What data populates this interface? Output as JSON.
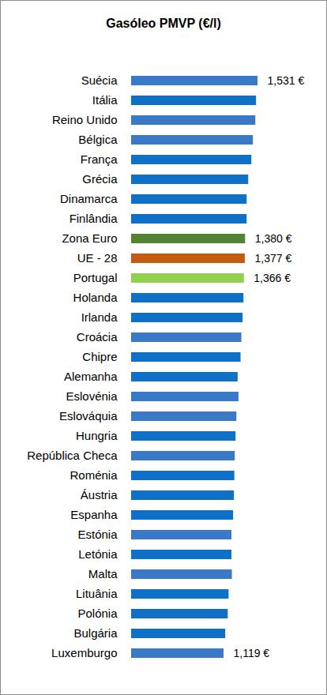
{
  "chart_data": {
    "type": "bar",
    "title": "Gasóleo PMVP (€/l)",
    "orientation": "horizontal",
    "categories": [
      "Suécia",
      "Itália",
      "Reino Unido",
      "Bélgica",
      "França",
      "Grécia",
      "Dinamarca",
      "Finlândia",
      "Zona Euro",
      "UE - 28",
      "Portugal",
      "Holanda",
      "Irlanda",
      "Croácia",
      "Chipre",
      "Alemanha",
      "Eslovénia",
      "Eslováquia",
      "Hungria",
      "República Checa",
      "Roménia",
      "Áustria",
      "Espanha",
      "Estónia",
      "Letónia",
      "Malta",
      "Lituânia",
      "Polónia",
      "Bulgária",
      "Luxemburgo"
    ],
    "values": [
      1.531,
      1.513,
      1.504,
      1.475,
      1.456,
      1.418,
      1.399,
      1.399,
      1.38,
      1.377,
      1.366,
      1.36,
      1.35,
      1.335,
      1.325,
      1.29,
      1.3,
      1.275,
      1.265,
      1.255,
      1.25,
      1.245,
      1.235,
      1.215,
      1.215,
      1.22,
      1.18,
      1.17,
      1.14,
      1.119
    ],
    "value_labels": [
      "1,531 €",
      null,
      null,
      null,
      null,
      null,
      null,
      null,
      "1,380 €",
      "1,377 €",
      "1,366 €",
      null,
      null,
      null,
      null,
      null,
      null,
      null,
      null,
      null,
      null,
      null,
      null,
      null,
      null,
      null,
      null,
      null,
      null,
      "1,119 €"
    ],
    "colors": [
      "#3a78c8",
      "#0f70c8",
      "#3a78c8",
      "#3a78c8",
      "#0f70c8",
      "#0f70c8",
      "#0f70c8",
      "#0f70c8",
      "#548235",
      "#c55a11",
      "#92d050",
      "#0f70c8",
      "#0f70c8",
      "#3a78c8",
      "#0f70c8",
      "#0f70c8",
      "#3a78c8",
      "#3a78c8",
      "#0f70c8",
      "#3a78c8",
      "#0f70c8",
      "#0f70c8",
      "#0f70c8",
      "#3a78c8",
      "#0f70c8",
      "#3a78c8",
      "#0f70c8",
      "#0f70c8",
      "#0f70c8",
      "#3a78c8"
    ],
    "xlim": [
      0,
      2.2
    ],
    "xticks": [],
    "data_labels": true,
    "tick_labels": "y",
    "grid": false
  }
}
